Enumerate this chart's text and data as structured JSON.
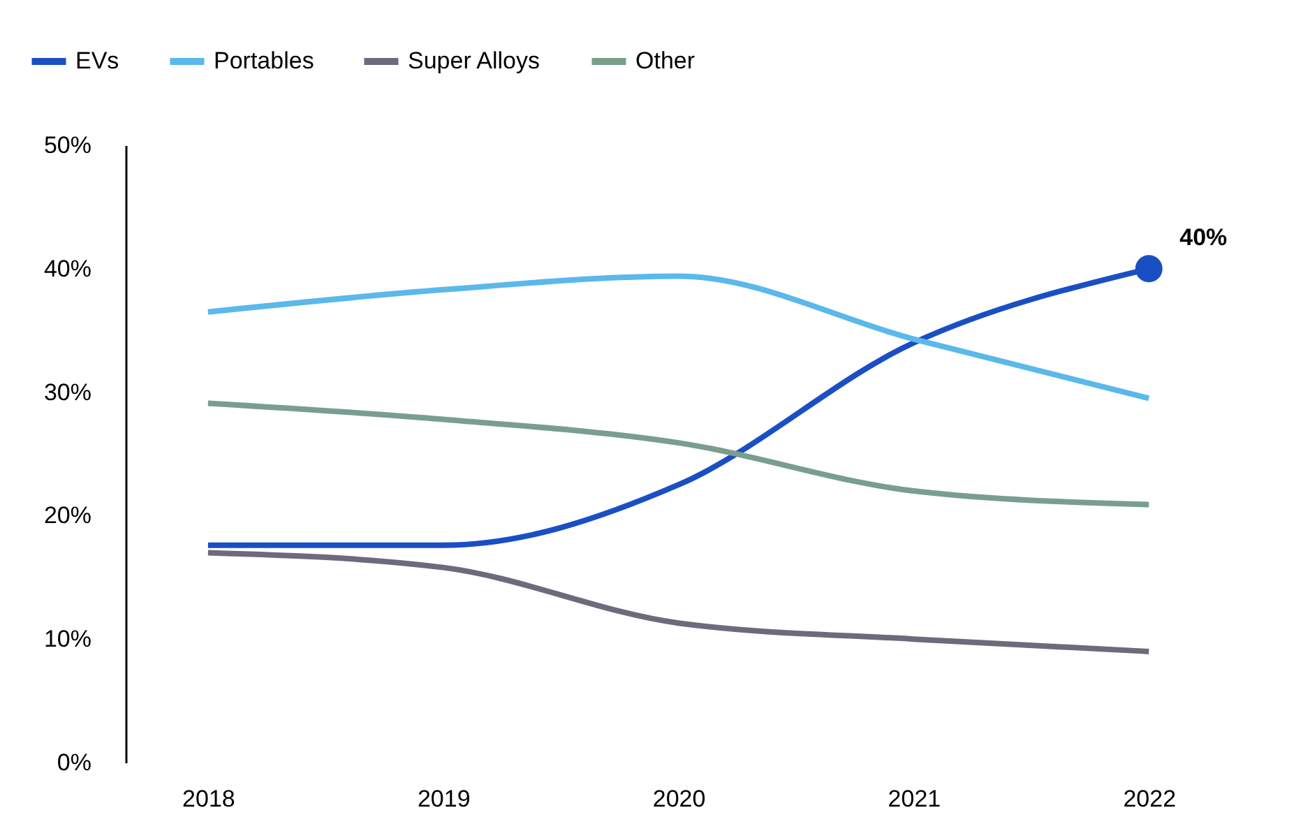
{
  "chart_data": {
    "type": "line",
    "categories": [
      "2018",
      "2019",
      "2020",
      "2021",
      "2022"
    ],
    "series": [
      {
        "name": "EVs",
        "color": "#1a4fc4",
        "values": [
          17.6,
          17.6,
          22.5,
          34.0,
          40.0
        ]
      },
      {
        "name": "Portables",
        "color": "#5bb8ea",
        "values": [
          36.5,
          38.3,
          39.4,
          34.3,
          29.5
        ]
      },
      {
        "name": "Super Alloys",
        "color": "#6e6a7c",
        "values": [
          17.0,
          15.8,
          11.3,
          10.0,
          9.0
        ]
      },
      {
        "name": "Other",
        "color": "#7a9e8e",
        "values": [
          29.1,
          27.8,
          25.9,
          22.0,
          20.9
        ]
      }
    ],
    "ylim": [
      0,
      50
    ],
    "yticks": [
      {
        "value": 0,
        "label": "0%"
      },
      {
        "value": 10,
        "label": "10%"
      },
      {
        "value": 20,
        "label": "20%"
      },
      {
        "value": 30,
        "label": "30%"
      },
      {
        "value": 40,
        "label": "40%"
      },
      {
        "value": 50,
        "label": "50%"
      }
    ],
    "annotations": [
      {
        "text": "40%",
        "x": "2022",
        "y": 40
      }
    ],
    "legend": "top left",
    "grid": false,
    "marker": "none",
    "line_style": "solid"
  }
}
